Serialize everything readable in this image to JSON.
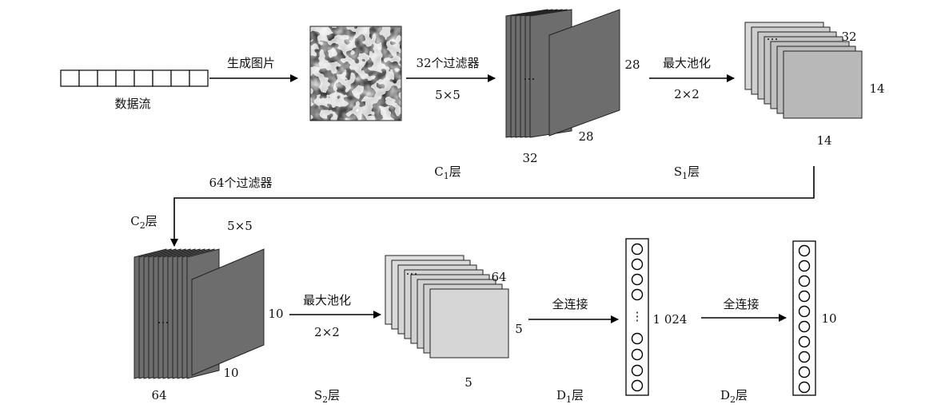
{
  "input": {
    "label": "数据流",
    "cells": 8
  },
  "arrow_generate": {
    "label": "生成图片"
  },
  "arrow_conv1": {
    "label_top": "32个过滤器",
    "label_bottom": "5×5"
  },
  "c1": {
    "name": "C",
    "sub": "1",
    "suffix": "层",
    "depth": "32",
    "height": "28",
    "width": "28"
  },
  "arrow_pool1": {
    "label_top": "最大池化",
    "label_bottom": "2×2"
  },
  "s1": {
    "name": "S",
    "sub": "1",
    "suffix": "层",
    "depth": "32",
    "height": "14",
    "width": "14"
  },
  "arrow_conv2": {
    "label": "64个过滤器"
  },
  "c2": {
    "name": "C",
    "sub": "2",
    "suffix": "层",
    "kernel": "5×5",
    "depth": "64",
    "height": "10",
    "width": "10"
  },
  "arrow_pool2": {
    "label_top": "最大池化",
    "label_bottom": "2×2"
  },
  "s2": {
    "name": "S",
    "sub": "2",
    "suffix": "层",
    "depth": "64",
    "height": "5",
    "width": "5"
  },
  "arrow_fc1": {
    "label": "全连接"
  },
  "d1": {
    "name": "D",
    "sub": "1",
    "suffix": "层",
    "units": "1 024"
  },
  "arrow_fc2": {
    "label": "全连接"
  },
  "d2": {
    "name": "D",
    "sub": "2",
    "suffix": "层",
    "units": "10"
  },
  "ellipsis": "…",
  "vellipsis": "⋮"
}
